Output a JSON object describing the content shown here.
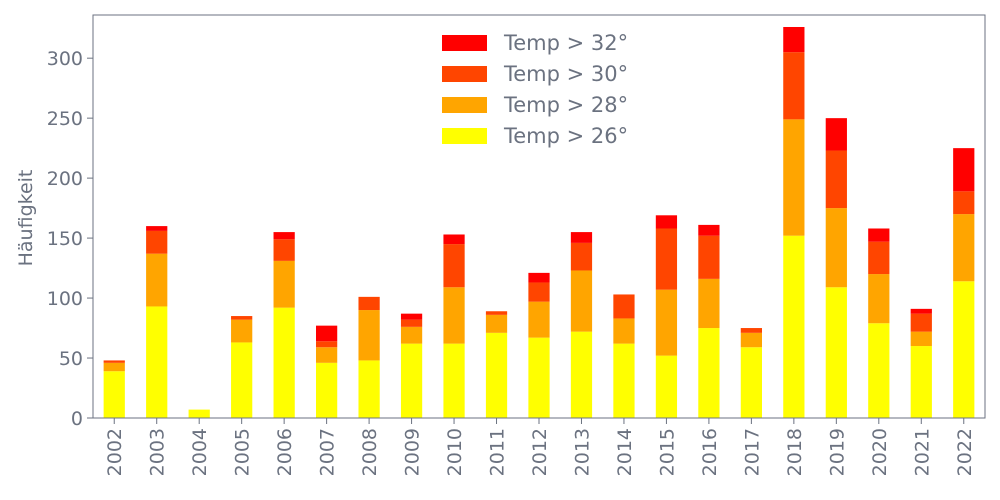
{
  "chart_data": {
    "type": "bar",
    "stacked": true,
    "title": "",
    "xlabel": "",
    "ylabel": "Häufigkeit",
    "ylim": [
      0,
      336
    ],
    "yticks": [
      0,
      50,
      100,
      150,
      200,
      250,
      300
    ],
    "grid": false,
    "legend_position": "top-center",
    "categories": [
      "2002",
      "2003",
      "2004",
      "2005",
      "2006",
      "2007",
      "2008",
      "2009",
      "2010",
      "2011",
      "2012",
      "2013",
      "2014",
      "2015",
      "2016",
      "2017",
      "2018",
      "2019",
      "2020",
      "2021",
      "2022"
    ],
    "series": [
      {
        "name": "Temp > 26°",
        "color": "#ffff00",
        "values": [
          39,
          93,
          7,
          63,
          92,
          46,
          48,
          62,
          62,
          71,
          67,
          72,
          62,
          52,
          75,
          59,
          152,
          109,
          79,
          60,
          114
        ]
      },
      {
        "name": "Temp > 28°",
        "color": "#ffa500",
        "values": [
          7,
          44,
          0,
          19,
          39,
          13,
          42,
          14,
          47,
          15,
          30,
          51,
          21,
          55,
          41,
          12,
          97,
          66,
          41,
          12,
          56
        ]
      },
      {
        "name": "Temp > 30°",
        "color": "#ff4500",
        "values": [
          2,
          19,
          0,
          3,
          18,
          5,
          11,
          6,
          36,
          3,
          16,
          23,
          20,
          51,
          36,
          4,
          56,
          48,
          27,
          15,
          19
        ]
      },
      {
        "name": "Temp > 32°",
        "color": "#ff0000",
        "values": [
          0,
          4,
          0,
          0,
          6,
          13,
          0,
          5,
          8,
          0,
          8,
          9,
          0,
          11,
          9,
          0,
          21,
          27,
          11,
          4,
          36
        ]
      }
    ]
  }
}
